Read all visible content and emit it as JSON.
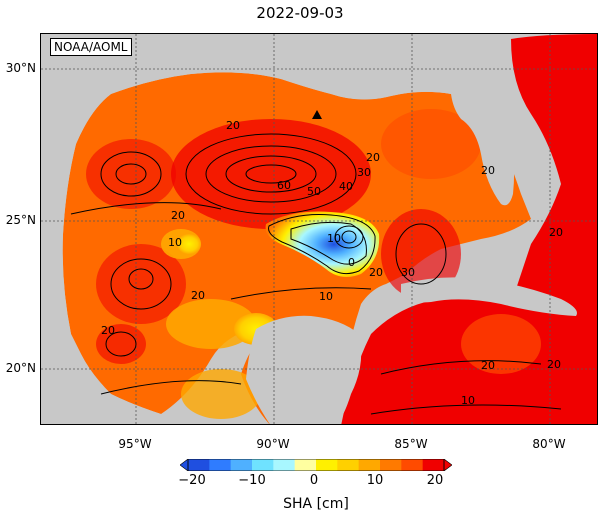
{
  "title": "2022-09-03",
  "credit": "NOAA/AOML",
  "map": {
    "lat_labels": [
      "30°N",
      "25°N",
      "20°N"
    ],
    "lon_labels": [
      "95°W",
      "90°W",
      "85°W",
      "80°W"
    ],
    "contour_labels": [
      "20",
      "20",
      "20",
      "30",
      "40",
      "50",
      "60",
      "10",
      "0",
      "10",
      "20",
      "20",
      "30",
      "10",
      "20",
      "20",
      "20",
      "20",
      "10",
      "20"
    ],
    "marker": "triangle",
    "colors": {
      "land": "#c8c8c8",
      "ocean_low": "#2f7cff",
      "ocean_mid": "#ffe24a",
      "ocean_high": "#f00000",
      "contour": "#000000"
    }
  },
  "colorbar": {
    "ticks": [
      "−20",
      "−10",
      "0",
      "10",
      "20"
    ],
    "title": "SHA [cm]",
    "colors": [
      "#1f4fe0",
      "#2f7cff",
      "#4fb0ff",
      "#6fe2ff",
      "#a8f7ff",
      "#ffffa0",
      "#fff000",
      "#ffd000",
      "#ffa800",
      "#ff7a00",
      "#ff4b00",
      "#f00000"
    ]
  }
}
